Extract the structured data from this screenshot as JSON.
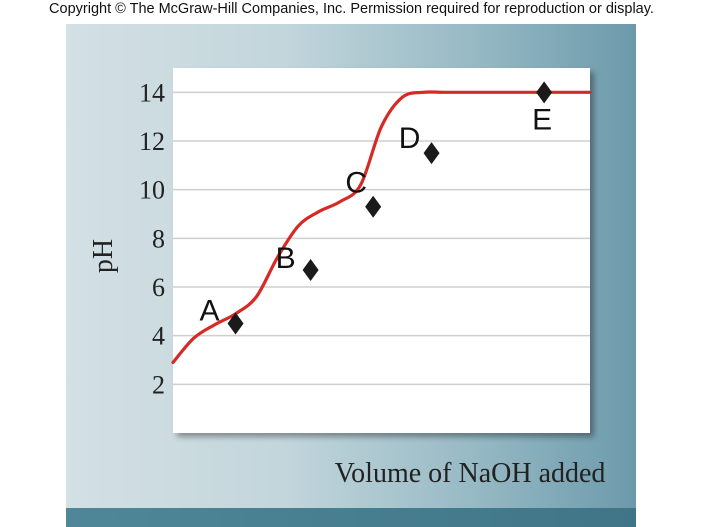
{
  "copyright": "Copyright © The McGraw-Hill Companies, Inc. Permission required for reproduction or display.",
  "colors": {
    "curve": "#d62a26",
    "marker": "#1a1a1a",
    "grid": "#cfcfcf"
  },
  "chart_data": {
    "type": "line",
    "title": "",
    "xlabel": "Volume of NaOH added",
    "ylabel": "pH",
    "ylim": [
      0,
      15
    ],
    "yticks": [
      2,
      4,
      6,
      8,
      10,
      12,
      14
    ],
    "grid": true,
    "series": [
      {
        "x": [
          0.0,
          0.05,
          0.1,
          0.15,
          0.2,
          0.25,
          0.3,
          0.35,
          0.4,
          0.45,
          0.5,
          0.55,
          0.6,
          0.65,
          0.7,
          0.75,
          0.8,
          0.85,
          0.9,
          0.95,
          1.0
        ],
        "y": [
          2.9,
          3.9,
          4.45,
          4.9,
          5.6,
          7.2,
          8.5,
          9.1,
          9.5,
          10.2,
          12.6,
          13.8,
          14.0,
          14.0,
          14.0,
          14.0,
          14.0,
          14.0,
          14.0,
          14.0,
          14.0
        ]
      }
    ],
    "points": [
      {
        "label": "A",
        "x": 0.15,
        "y": 4.5
      },
      {
        "label": "B",
        "x": 0.33,
        "y": 6.7
      },
      {
        "label": "C",
        "x": 0.48,
        "y": 9.3
      },
      {
        "label": "D",
        "x": 0.62,
        "y": 11.5
      },
      {
        "label": "E",
        "x": 0.89,
        "y": 14.0
      }
    ]
  }
}
